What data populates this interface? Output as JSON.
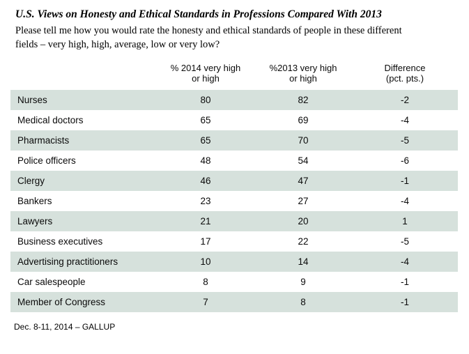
{
  "page": {
    "title": "U.S. Views on Honesty and Ethical Standards in Professions Compared With 2013",
    "subtitle": "Please tell me how you would rate the honesty and ethical standards of people in these different fields – very high, high, average, low or very low?",
    "footer": "Dec. 8-11, 2014 – GALLUP"
  },
  "table": {
    "columns": [
      {
        "line1": "% 2014 very high",
        "line2": "or high"
      },
      {
        "line1": "%2013 very high",
        "line2": "or high"
      },
      {
        "line1": "Difference",
        "line2": "(pct. pts.)"
      }
    ],
    "rows": [
      {
        "label": "Nurses",
        "y2014": "80",
        "y2013": "82",
        "diff": "-2"
      },
      {
        "label": "Medical doctors",
        "y2014": "65",
        "y2013": "69",
        "diff": "-4"
      },
      {
        "label": "Pharmacists",
        "y2014": "65",
        "y2013": "70",
        "diff": "-5"
      },
      {
        "label": "Police officers",
        "y2014": "48",
        "y2013": "54",
        "diff": "-6"
      },
      {
        "label": "Clergy",
        "y2014": "46",
        "y2013": "47",
        "diff": "-1"
      },
      {
        "label": "Bankers",
        "y2014": "23",
        "y2013": "27",
        "diff": "-4"
      },
      {
        "label": "Lawyers",
        "y2014": "21",
        "y2013": "20",
        "diff": "1"
      },
      {
        "label": "Business executives",
        "y2014": "17",
        "y2013": "22",
        "diff": "-5"
      },
      {
        "label": "Advertising practitioners",
        "y2014": "10",
        "y2013": "14",
        "diff": "-4"
      },
      {
        "label": "Car salespeople",
        "y2014": "8",
        "y2013": "9",
        "diff": "-1"
      },
      {
        "label": "Member of Congress",
        "y2014": "7",
        "y2013": "8",
        "diff": "-1"
      }
    ]
  },
  "colors": {
    "background": "#ffffff",
    "row_shade": "#d6e1dc",
    "text": "#000000"
  },
  "chart_data": {
    "type": "table",
    "title": "U.S. Views on Honesty and Ethical Standards in Professions Compared With 2013",
    "subtitle": "Please tell me how you would rate the honesty and ethical standards of people in these different fields – very high, high, average, low or very low?",
    "categories": [
      "Nurses",
      "Medical doctors",
      "Pharmacists",
      "Police officers",
      "Clergy",
      "Bankers",
      "Lawyers",
      "Business executives",
      "Advertising practitioners",
      "Car salespeople",
      "Member of Congress"
    ],
    "series": [
      {
        "name": "% 2014 very high or high",
        "values": [
          80,
          65,
          65,
          48,
          46,
          23,
          21,
          17,
          10,
          8,
          7
        ]
      },
      {
        "name": "%2013 very high or high",
        "values": [
          82,
          69,
          70,
          54,
          47,
          27,
          20,
          22,
          14,
          9,
          8
        ]
      },
      {
        "name": "Difference (pct. pts.)",
        "values": [
          -2,
          -4,
          -5,
          -6,
          -1,
          -4,
          1,
          -5,
          -4,
          -1,
          -1
        ]
      }
    ],
    "source_note": "Dec. 8-11, 2014 – GALLUP",
    "layout_hints": {
      "zebra_striping": true,
      "stripe_color": "#d6e1dc",
      "first_row_shaded": true
    }
  }
}
